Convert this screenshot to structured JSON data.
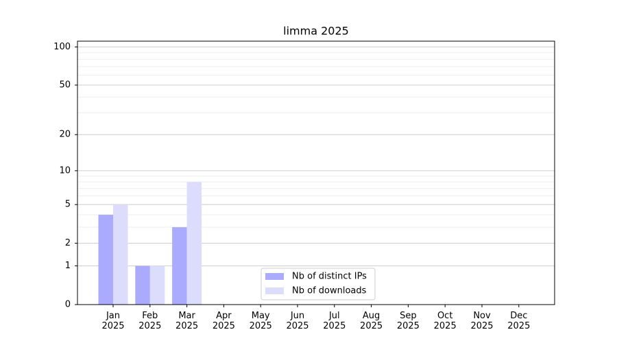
{
  "chart_data": {
    "type": "bar",
    "title": "limma 2025",
    "categories": [
      "Jan 2025",
      "Feb 2025",
      "Mar 2025",
      "Apr 2025",
      "May 2025",
      "Jun 2025",
      "Jul 2025",
      "Aug 2025",
      "Sep 2025",
      "Oct 2025",
      "Nov 2025",
      "Dec 2025"
    ],
    "series": [
      {
        "name": "Nb of distinct IPs",
        "color": "#aaaaff",
        "values": [
          4,
          1,
          3,
          0,
          0,
          0,
          0,
          0,
          0,
          0,
          0,
          0
        ]
      },
      {
        "name": "Nb of downloads",
        "color": "#dcdcfc",
        "values": [
          5,
          1,
          8,
          0,
          0,
          0,
          0,
          0,
          0,
          0,
          0,
          0
        ]
      }
    ],
    "yscale": "symlog",
    "ylim": [
      0,
      111
    ],
    "yticks": [
      0,
      1,
      2,
      5,
      10,
      20,
      50,
      100
    ],
    "minor_yticks": [
      3,
      4,
      6,
      7,
      8,
      9,
      30,
      40,
      60,
      70,
      80,
      90
    ],
    "grid": true,
    "legend": "lower center"
  }
}
